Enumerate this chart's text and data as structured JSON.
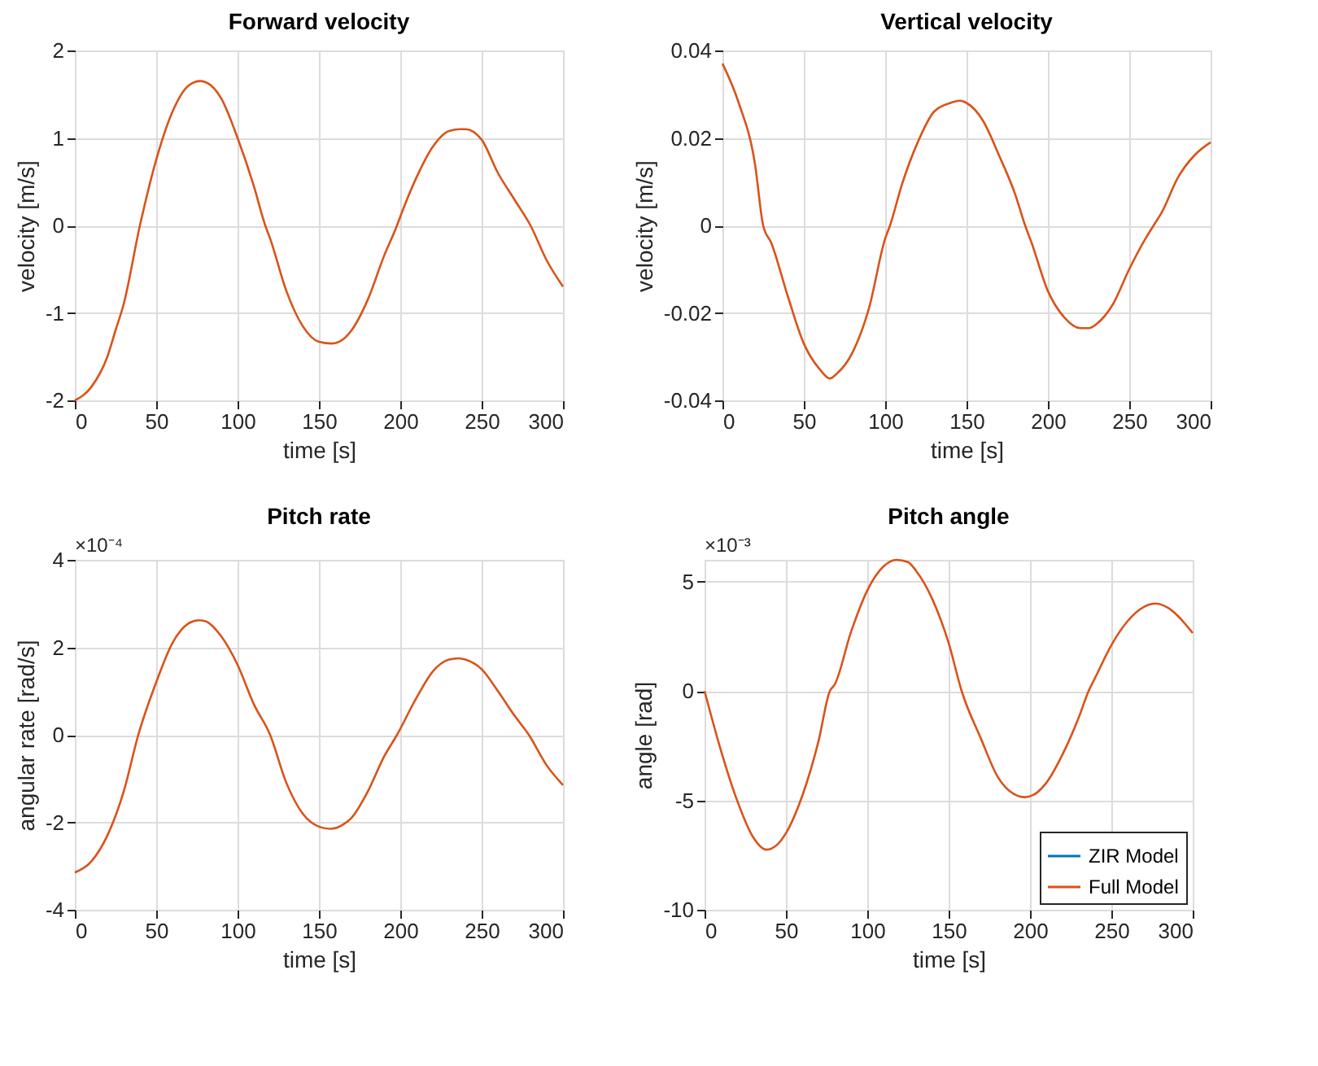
{
  "chart_data": [
    {
      "type": "line",
      "title": "Forward velocity",
      "xlabel": "time [s]",
      "ylabel": "velocity [m/s]",
      "xlim": [
        0,
        300
      ],
      "xticks": [
        0,
        50,
        100,
        150,
        200,
        250,
        300
      ],
      "ylim": [
        -2,
        2
      ],
      "yticks": [
        -2,
        -1,
        0,
        1,
        2
      ],
      "grid": true,
      "line_style": "solid",
      "x": [
        0,
        10,
        20,
        25,
        30,
        40,
        50,
        60,
        70,
        77,
        80,
        90,
        100,
        110,
        117,
        120,
        130,
        140,
        150,
        158,
        165,
        170,
        180,
        190,
        198,
        200,
        210,
        220,
        230,
        237,
        240,
        250,
        260,
        270,
        280,
        290,
        300
      ],
      "series": [
        {
          "color": "#d95319",
          "values": [
            -2,
            -1.85,
            -1.5,
            -1.2,
            -0.9,
            0,
            0.75,
            1.3,
            1.6,
            1.65,
            1.64,
            1.45,
            1.0,
            0.45,
            0,
            -0.15,
            -0.75,
            -1.15,
            -1.33,
            -1.35,
            -1.3,
            -1.2,
            -0.85,
            -0.35,
            0,
            0.1,
            0.55,
            0.9,
            1.08,
            1.1,
            1.1,
            0.98,
            0.6,
            0.3,
            0,
            -0.4,
            -0.7
          ]
        }
      ]
    },
    {
      "type": "line",
      "title": "Vertical velocity",
      "xlabel": "time [s]",
      "ylabel": "velocity [m/s]",
      "xlim": [
        0,
        300
      ],
      "xticks": [
        0,
        50,
        100,
        150,
        200,
        250,
        300
      ],
      "ylim": [
        -0.04,
        0.04
      ],
      "yticks": [
        -0.04,
        -0.02,
        0,
        0.02,
        0.04
      ],
      "grid": true,
      "line_style": "solid",
      "x": [
        0,
        10,
        20,
        25,
        30,
        40,
        50,
        60,
        66,
        70,
        80,
        90,
        100,
        103,
        110,
        120,
        130,
        140,
        146,
        150,
        160,
        170,
        180,
        186,
        190,
        200,
        210,
        220,
        225,
        230,
        240,
        250,
        260,
        265,
        270,
        280,
        290,
        300
      ],
      "series": [
        {
          "color": "#d95319",
          "values": [
            0.037,
            0.028,
            0.014,
            0,
            -0.004,
            -0.016,
            -0.027,
            -0.033,
            -0.035,
            -0.034,
            -0.029,
            -0.019,
            -0.003,
            0,
            0.009,
            0.019,
            0.026,
            0.028,
            0.0285,
            0.028,
            0.024,
            0.016,
            0.007,
            0,
            -0.004,
            -0.015,
            -0.021,
            -0.0235,
            -0.0235,
            -0.0225,
            -0.018,
            -0.01,
            -0.003,
            0,
            0.003,
            0.011,
            0.016,
            0.019
          ]
        }
      ]
    },
    {
      "type": "line",
      "title": "Pitch rate",
      "xlabel": "time [s]",
      "ylabel": "angular rate [rad/s]",
      "annotations": [
        "×10⁻⁴"
      ],
      "xlim": [
        0,
        300
      ],
      "xticks": [
        0,
        50,
        100,
        150,
        200,
        250,
        300
      ],
      "ylim": [
        -4,
        4
      ],
      "yticks": [
        -4,
        -2,
        0,
        2,
        4
      ],
      "grid": true,
      "line_style": "solid",
      "x": [
        0,
        10,
        20,
        30,
        39,
        50,
        60,
        70,
        76,
        80,
        90,
        100,
        110,
        120,
        130,
        140,
        150,
        157,
        165,
        170,
        180,
        190,
        198,
        210,
        220,
        230,
        236,
        240,
        250,
        260,
        270,
        279,
        290,
        300
      ],
      "series": [
        {
          "color": "#d95319",
          "values": [
            -3.15,
            -2.9,
            -2.3,
            -1.3,
            0,
            1.2,
            2.1,
            2.55,
            2.62,
            2.6,
            2.25,
            1.6,
            0.7,
            0,
            -1.1,
            -1.8,
            -2.1,
            -2.15,
            -2.05,
            -1.9,
            -1.3,
            -0.5,
            0,
            0.85,
            1.45,
            1.72,
            1.75,
            1.72,
            1.5,
            1.0,
            0.45,
            0,
            -0.7,
            -1.15
          ]
        }
      ]
    },
    {
      "type": "line",
      "title": "Pitch angle",
      "xlabel": "time [s]",
      "ylabel": "angle [rad]",
      "annotations": [
        "×10⁻³"
      ],
      "xlim": [
        0,
        300
      ],
      "xticks": [
        0,
        50,
        100,
        150,
        200,
        250,
        300
      ],
      "ylim": [
        -10,
        6
      ],
      "yticks": [
        -10,
        -5,
        0,
        5
      ],
      "grid": true,
      "line_style": "solid",
      "legend": "bottom right",
      "x": [
        0,
        10,
        20,
        30,
        38,
        45,
        50,
        60,
        70,
        77,
        80,
        90,
        100,
        110,
        118,
        125,
        130,
        140,
        150,
        158,
        170,
        180,
        190,
        197,
        205,
        210,
        220,
        230,
        236,
        240,
        250,
        260,
        270,
        277,
        285,
        290,
        300
      ],
      "series": [
        {
          "name": "ZIR Model",
          "color": "#0072bd",
          "values": [
            null,
            null,
            null,
            null,
            null,
            null,
            null,
            null,
            null,
            null,
            null,
            null,
            null,
            null,
            null,
            null,
            null,
            null,
            null,
            null,
            null,
            null,
            null,
            null,
            null,
            null,
            null,
            null,
            null,
            null,
            null,
            null,
            null,
            null,
            null,
            null,
            null
          ]
        },
        {
          "name": "Full Model",
          "color": "#d95319",
          "values": [
            0,
            -2.7,
            -5,
            -6.7,
            -7.25,
            -7,
            -6.5,
            -4.8,
            -2.3,
            0,
            0.3,
            2.7,
            4.6,
            5.7,
            6.0,
            5.9,
            5.5,
            4.2,
            2.2,
            0,
            -2.2,
            -3.9,
            -4.7,
            -4.85,
            -4.6,
            -4.2,
            -2.9,
            -1.2,
            0,
            0.6,
            2.1,
            3.2,
            3.85,
            4.0,
            3.8,
            3.5,
            2.65
          ]
        }
      ]
    }
  ]
}
